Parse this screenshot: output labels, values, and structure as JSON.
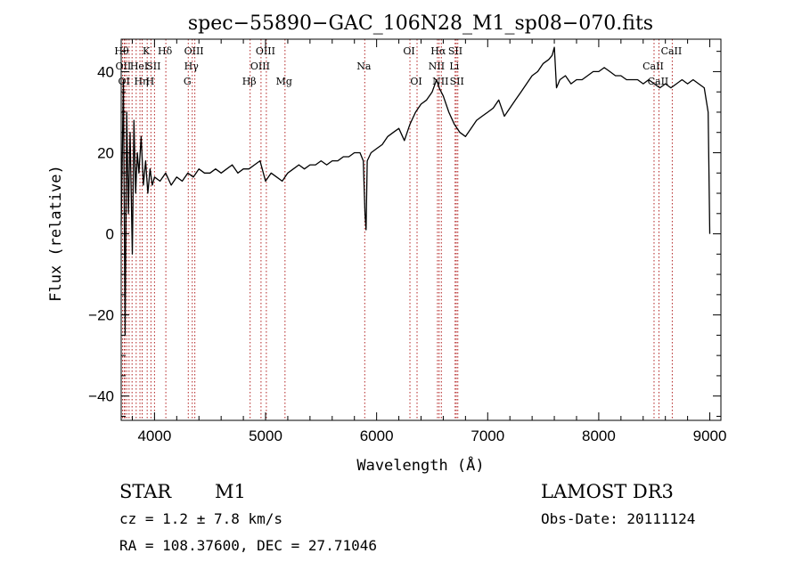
{
  "chart_data": {
    "type": "line",
    "title": "spec−55890−GAC_106N28_M1_sp08−070.fits",
    "xlabel": "Wavelength (Å)",
    "ylabel": "Flux (relative)",
    "xlim": [
      3700,
      9100
    ],
    "ylim": [
      -46,
      48
    ],
    "xticks": [
      {
        "value": 4000,
        "label": "4000"
      },
      {
        "value": 5000,
        "label": "5000"
      },
      {
        "value": 6000,
        "label": "6000"
      },
      {
        "value": 7000,
        "label": "7000"
      },
      {
        "value": 8000,
        "label": "8000"
      },
      {
        "value": 9000,
        "label": "9000"
      }
    ],
    "yticks": [
      {
        "value": -40,
        "label": "−40"
      },
      {
        "value": -20,
        "label": "−20"
      },
      {
        "value": 0,
        "label": "0"
      },
      {
        "value": 20,
        "label": "20"
      },
      {
        "value": 40,
        "label": "40"
      }
    ],
    "line_color": "#000000",
    "marker_color": "#b22222",
    "series": [
      {
        "name": "flux",
        "points": [
          [
            3700,
            2
          ],
          [
            3720,
            38
          ],
          [
            3735,
            -25
          ],
          [
            3750,
            30
          ],
          [
            3765,
            5
          ],
          [
            3780,
            25
          ],
          [
            3800,
            -5
          ],
          [
            3815,
            28
          ],
          [
            3830,
            10
          ],
          [
            3845,
            20
          ],
          [
            3860,
            15
          ],
          [
            3880,
            24
          ],
          [
            3900,
            12
          ],
          [
            3920,
            18
          ],
          [
            3940,
            10
          ],
          [
            3960,
            16
          ],
          [
            3980,
            12
          ],
          [
            4000,
            14
          ],
          [
            4050,
            13
          ],
          [
            4100,
            15
          ],
          [
            4150,
            12
          ],
          [
            4200,
            14
          ],
          [
            4250,
            13
          ],
          [
            4300,
            15
          ],
          [
            4350,
            14
          ],
          [
            4400,
            16
          ],
          [
            4450,
            15
          ],
          [
            4500,
            15
          ],
          [
            4550,
            16
          ],
          [
            4600,
            15
          ],
          [
            4650,
            16
          ],
          [
            4700,
            17
          ],
          [
            4750,
            15
          ],
          [
            4800,
            16
          ],
          [
            4850,
            16
          ],
          [
            4900,
            17
          ],
          [
            4950,
            18
          ],
          [
            5000,
            13
          ],
          [
            5050,
            15
          ],
          [
            5100,
            14
          ],
          [
            5150,
            13
          ],
          [
            5200,
            15
          ],
          [
            5250,
            16
          ],
          [
            5300,
            17
          ],
          [
            5350,
            16
          ],
          [
            5400,
            17
          ],
          [
            5450,
            17
          ],
          [
            5500,
            18
          ],
          [
            5550,
            17
          ],
          [
            5600,
            18
          ],
          [
            5650,
            18
          ],
          [
            5700,
            19
          ],
          [
            5750,
            19
          ],
          [
            5800,
            20
          ],
          [
            5850,
            20
          ],
          [
            5880,
            18
          ],
          [
            5895,
            5
          ],
          [
            5905,
            1
          ],
          [
            5915,
            18
          ],
          [
            5950,
            20
          ],
          [
            6000,
            21
          ],
          [
            6050,
            22
          ],
          [
            6100,
            24
          ],
          [
            6150,
            25
          ],
          [
            6200,
            26
          ],
          [
            6250,
            23
          ],
          [
            6300,
            27
          ],
          [
            6350,
            30
          ],
          [
            6400,
            32
          ],
          [
            6450,
            33
          ],
          [
            6500,
            35
          ],
          [
            6540,
            38
          ],
          [
            6563,
            36
          ],
          [
            6600,
            34
          ],
          [
            6650,
            30
          ],
          [
            6700,
            27
          ],
          [
            6750,
            25
          ],
          [
            6800,
            24
          ],
          [
            6850,
            26
          ],
          [
            6900,
            28
          ],
          [
            6950,
            29
          ],
          [
            7000,
            30
          ],
          [
            7050,
            31
          ],
          [
            7100,
            33
          ],
          [
            7150,
            29
          ],
          [
            7200,
            31
          ],
          [
            7250,
            33
          ],
          [
            7300,
            35
          ],
          [
            7350,
            37
          ],
          [
            7400,
            39
          ],
          [
            7450,
            40
          ],
          [
            7500,
            42
          ],
          [
            7550,
            43
          ],
          [
            7580,
            44
          ],
          [
            7600,
            46
          ],
          [
            7620,
            36
          ],
          [
            7650,
            38
          ],
          [
            7700,
            39
          ],
          [
            7750,
            37
          ],
          [
            7800,
            38
          ],
          [
            7850,
            38
          ],
          [
            7900,
            39
          ],
          [
            7950,
            40
          ],
          [
            8000,
            40
          ],
          [
            8050,
            41
          ],
          [
            8100,
            40
          ],
          [
            8150,
            39
          ],
          [
            8200,
            39
          ],
          [
            8250,
            38
          ],
          [
            8300,
            38
          ],
          [
            8350,
            38
          ],
          [
            8400,
            37
          ],
          [
            8450,
            38
          ],
          [
            8500,
            37
          ],
          [
            8550,
            36
          ],
          [
            8600,
            37
          ],
          [
            8650,
            36
          ],
          [
            8700,
            37
          ],
          [
            8750,
            38
          ],
          [
            8800,
            37
          ],
          [
            8850,
            38
          ],
          [
            8900,
            37
          ],
          [
            8950,
            36
          ],
          [
            8985,
            30
          ],
          [
            9000,
            0
          ]
        ]
      }
    ],
    "line_markers": [
      {
        "wavelength": 3712,
        "label": "Hθ",
        "row": 1
      },
      {
        "wavelength": 3727,
        "label": "OII",
        "row": 2
      },
      {
        "wavelength": 3734,
        "label": "OI",
        "row": 3
      },
      {
        "wavelength": 3750,
        "label": "",
        "row": 0
      },
      {
        "wavelength": 3771,
        "label": "",
        "row": 0
      },
      {
        "wavelength": 3798,
        "label": "",
        "row": 0
      },
      {
        "wavelength": 3835,
        "label": "",
        "row": 0
      },
      {
        "wavelength": 3869,
        "label": "HeI",
        "row": 2
      },
      {
        "wavelength": 3889,
        "label": "",
        "row": 0
      },
      {
        "wavelength": 3889,
        "label": "Hη",
        "row": 3
      },
      {
        "wavelength": 3934,
        "label": "K",
        "row": 1
      },
      {
        "wavelength": 3968,
        "label": "H",
        "row": 3
      },
      {
        "wavelength": 4000,
        "label": "SII",
        "row": 2
      },
      {
        "wavelength": 4102,
        "label": "Hδ",
        "row": 1
      },
      {
        "wavelength": 4304,
        "label": "G",
        "row": 3
      },
      {
        "wavelength": 4340,
        "label": "Hγ",
        "row": 2
      },
      {
        "wavelength": 4363,
        "label": "OIII",
        "row": 1
      },
      {
        "wavelength": 4861,
        "label": "Hβ",
        "row": 3
      },
      {
        "wavelength": 4959,
        "label": "OIII",
        "row": 2
      },
      {
        "wavelength": 5007,
        "label": "OIII",
        "row": 1
      },
      {
        "wavelength": 5175,
        "label": "Mg",
        "row": 3
      },
      {
        "wavelength": 5893,
        "label": "Na",
        "row": 2
      },
      {
        "wavelength": 6300,
        "label": "OI",
        "row": 1
      },
      {
        "wavelength": 6364,
        "label": "OI",
        "row": 3
      },
      {
        "wavelength": 6548,
        "label": "NII",
        "row": 2
      },
      {
        "wavelength": 6563,
        "label": "Hα",
        "row": 1
      },
      {
        "wavelength": 6583,
        "label": "NII",
        "row": 3
      },
      {
        "wavelength": 6707,
        "label": "Li",
        "row": 2
      },
      {
        "wavelength": 6717,
        "label": "SII",
        "row": 1
      },
      {
        "wavelength": 6731,
        "label": "SII",
        "row": 3
      },
      {
        "wavelength": 8498,
        "label": "CaII",
        "row": 2
      },
      {
        "wavelength": 8542,
        "label": "CaII",
        "row": 3
      },
      {
        "wavelength": 8662,
        "label": "CaII",
        "row": 1
      }
    ]
  },
  "info": {
    "object_class": "STAR",
    "subclass": "M1",
    "survey": "LAMOST DR3",
    "cz": "cz = 1.2 ± 7.8 km/s",
    "obs_date": "Obs-Date: 20111124",
    "coords": "RA = 108.37600, DEC =  27.71046"
  }
}
